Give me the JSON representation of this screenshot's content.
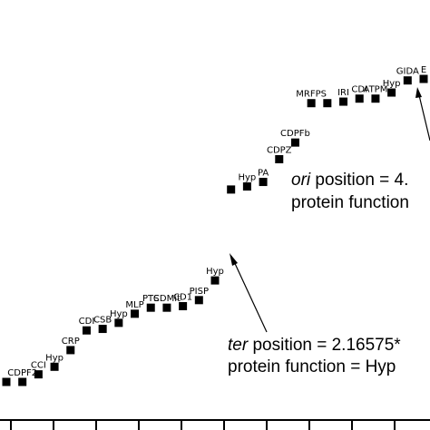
{
  "chart_data": {
    "type": "scatter",
    "marker": "square",
    "points": [
      {
        "i": 0,
        "label": "",
        "y": 0.0
      },
      {
        "i": 1,
        "label": "CDPF2",
        "y": 0.0
      },
      {
        "i": 2,
        "label": "CCI",
        "y": 0.25
      },
      {
        "i": 3,
        "label": "Hyp",
        "y": 0.5
      },
      {
        "i": 4,
        "label": "CRP",
        "y": 1.05
      },
      {
        "i": 5,
        "label": "CDI",
        "y": 1.7
      },
      {
        "i": 6,
        "label": "CSB",
        "y": 1.75
      },
      {
        "i": 7,
        "label": "Hyp",
        "y": 1.95
      },
      {
        "i": 8,
        "label": "MLP",
        "y": 2.25
      },
      {
        "i": 9,
        "label": "PTS",
        "y": 2.45
      },
      {
        "i": 10,
        "label": "CDMit",
        "y": 2.45
      },
      {
        "i": 11,
        "label": "CD1",
        "y": 2.5
      },
      {
        "i": 12,
        "label": "PISP",
        "y": 2.7
      },
      {
        "i": 13,
        "label": "Hyp",
        "y": 3.35
      },
      {
        "i": 14,
        "label": "",
        "y": 6.35
      },
      {
        "i": 15,
        "label": "Hyp",
        "y": 6.45
      },
      {
        "i": 16,
        "label": "PA",
        "y": 6.6
      },
      {
        "i": 17,
        "label": "CDPZ",
        "y": 7.35
      },
      {
        "i": 18,
        "label": "CDPFb",
        "y": 7.9
      },
      {
        "i": 19,
        "label": "MRFPS",
        "y": 9.2
      },
      {
        "i": 20,
        "label": "",
        "y": 9.2
      },
      {
        "i": 21,
        "label": "IRI",
        "y": 9.25
      },
      {
        "i": 22,
        "label": "CDI",
        "y": 9.35
      },
      {
        "i": 23,
        "label": "ATPM",
        "y": 9.35
      },
      {
        "i": 24,
        "label": "Hyp",
        "y": 9.55
      },
      {
        "i": 25,
        "label": "GIDA",
        "y": 9.95
      },
      {
        "i": 26,
        "label": "E",
        "y": 10.0
      }
    ],
    "annotations": [
      {
        "italic": "ter",
        "line1": " position = 2.16575*",
        "line2": "protein function = Hyp"
      },
      {
        "italic": "ori",
        "line1": " position = 4.",
        "line2": "protein function"
      }
    ]
  }
}
